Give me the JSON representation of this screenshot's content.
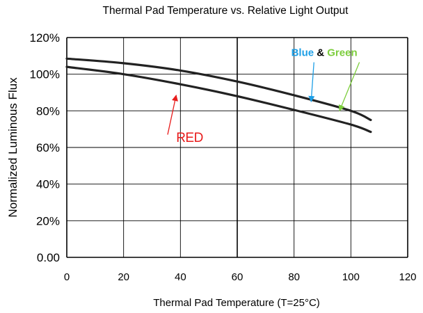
{
  "chart_data": {
    "type": "line",
    "title": "Thermal Pad Temperature vs. Relative Light Output",
    "xlabel": "Thermal Pad Temperature (T=25°C)",
    "ylabel": "Normalized Luminous Flux",
    "xlim": [
      0,
      120
    ],
    "ylim": [
      0,
      120
    ],
    "x_ticks": [
      0,
      20,
      40,
      60,
      80,
      100,
      120
    ],
    "x_tick_labels": [
      "0",
      "20",
      "40",
      "60",
      "80",
      "100",
      "120"
    ],
    "y_ticks": [
      0,
      20,
      40,
      60,
      80,
      100,
      120
    ],
    "y_tick_labels": [
      "0.00",
      "20%",
      "40%",
      "60%",
      "80%",
      "100%",
      "120%"
    ],
    "grid": true,
    "series": [
      {
        "name": "",
        "color": "#222222",
        "points": [
          [
            0,
            108.5
          ],
          [
            20,
            106
          ],
          [
            40,
            102
          ],
          [
            60,
            96
          ],
          [
            80,
            88.5
          ],
          [
            100,
            80
          ],
          [
            107,
            75
          ]
        ]
      },
      {
        "name": "",
        "color": "#222222",
        "points": [
          [
            0,
            104
          ],
          [
            20,
            100
          ],
          [
            40,
            94.5
          ],
          [
            60,
            88
          ],
          [
            80,
            80.5
          ],
          [
            100,
            72.5
          ],
          [
            107,
            68.5
          ]
        ]
      }
    ],
    "annotations": [
      {
        "id": "red",
        "parts": [
          {
            "text": "RED",
            "color": "#e81c1c"
          }
        ],
        "arrow_color": "#e81c1c",
        "text_at": [
          38.5,
          63
        ],
        "arrow_from": [
          35.5,
          67
        ],
        "arrow_to": [
          38.5,
          88.5
        ]
      },
      {
        "id": "blue-green",
        "parts": [
          {
            "text": "Blue",
            "color": "#1e9fe6"
          },
          {
            "text": " & ",
            "color": "#000000"
          },
          {
            "text": "Green",
            "color": "#7ccd3c"
          }
        ],
        "arrows": [
          {
            "color": "#1e9fe6",
            "from": [
              87,
              106.5
            ],
            "to": [
              86,
              85
            ]
          },
          {
            "color": "#7ccd3c",
            "from": [
              103,
              106.5
            ],
            "to": [
              96,
              80
            ]
          }
        ],
        "text_at": [
          79,
          110
        ]
      }
    ]
  }
}
